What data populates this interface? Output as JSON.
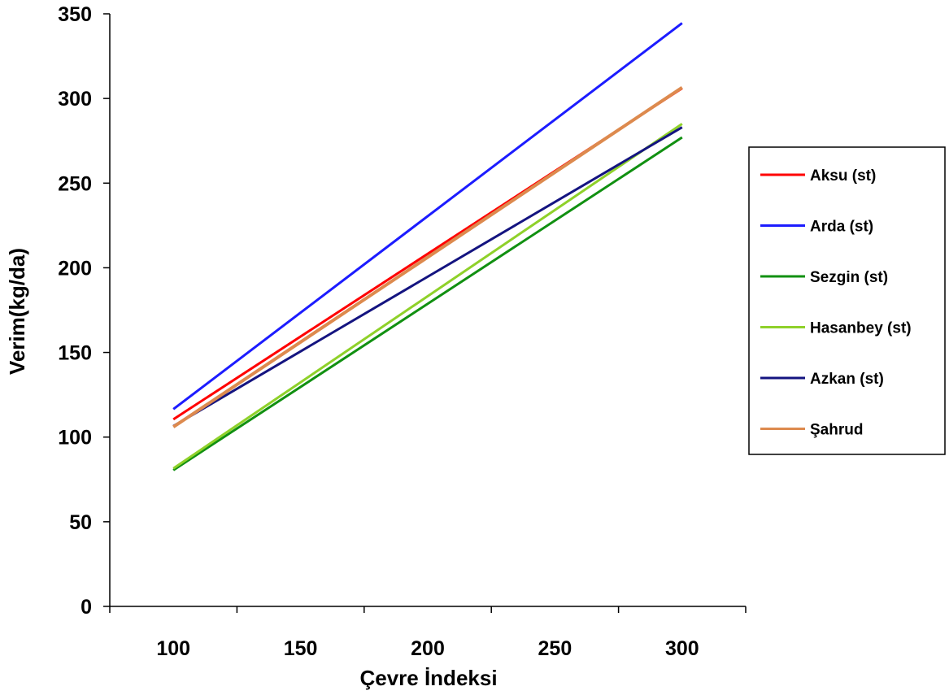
{
  "chart_data": {
    "type": "line",
    "xlabel": "Çevre İndeksi",
    "ylabel": "Verim(kg/da)",
    "xlim": [
      75,
      325
    ],
    "ylim": [
      0,
      350
    ],
    "x_ticks": [
      100,
      150,
      200,
      250,
      300
    ],
    "y_ticks": [
      0,
      50,
      100,
      150,
      200,
      250,
      300,
      350
    ],
    "x": [
      100,
      300
    ],
    "legend_position": "right",
    "grid": false,
    "series": [
      {
        "name": "Aksu (st)",
        "color": "#ff0000",
        "values": [
          110.5,
          306
        ]
      },
      {
        "name": "Arda (st)",
        "color": "#1c1cff",
        "values": [
          116.5,
          344.5
        ]
      },
      {
        "name": "Sezgin (st)",
        "color": "#119011",
        "values": [
          80.5,
          277
        ]
      },
      {
        "name": "Hasanbey (st)",
        "color": "#8fd12a",
        "values": [
          81.5,
          285
        ]
      },
      {
        "name": "Azkan (st)",
        "color": "#141480",
        "values": [
          106.5,
          283
        ]
      },
      {
        "name": "Şahrud",
        "color": "#dd8a4e",
        "values": [
          106,
          306.5
        ]
      }
    ]
  }
}
